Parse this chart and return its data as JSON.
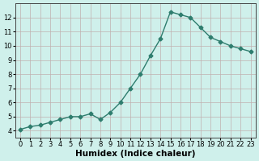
{
  "x": [
    0,
    1,
    2,
    3,
    4,
    5,
    6,
    7,
    8,
    9,
    10,
    11,
    12,
    13,
    14,
    15,
    16,
    17,
    18,
    19,
    20,
    21,
    22,
    23
  ],
  "y": [
    4.1,
    4.3,
    4.4,
    4.6,
    4.8,
    5.0,
    5.0,
    5.2,
    4.8,
    5.3,
    6.0,
    7.0,
    8.0,
    9.3,
    10.5,
    12.4,
    12.2,
    12.0,
    11.3,
    10.6,
    10.3,
    10.0,
    9.8,
    9.6
  ],
  "line_color": "#2e7d6e",
  "marker": "D",
  "marker_size": 2.5,
  "bg_color": "#cff0eb",
  "grid_color": "#c0b0b0",
  "xlabel": "Humidex (Indice chaleur)",
  "ylim": [
    3.5,
    13
  ],
  "xlim": [
    -0.5,
    23.5
  ],
  "yticks": [
    4,
    5,
    6,
    7,
    8,
    9,
    10,
    11,
    12
  ],
  "xticks": [
    0,
    1,
    2,
    3,
    4,
    5,
    6,
    7,
    8,
    9,
    10,
    11,
    12,
    13,
    14,
    15,
    16,
    17,
    18,
    19,
    20,
    21,
    22,
    23
  ],
  "tick_fontsize": 6,
  "xlabel_fontsize": 7.5,
  "line_width": 1.0
}
